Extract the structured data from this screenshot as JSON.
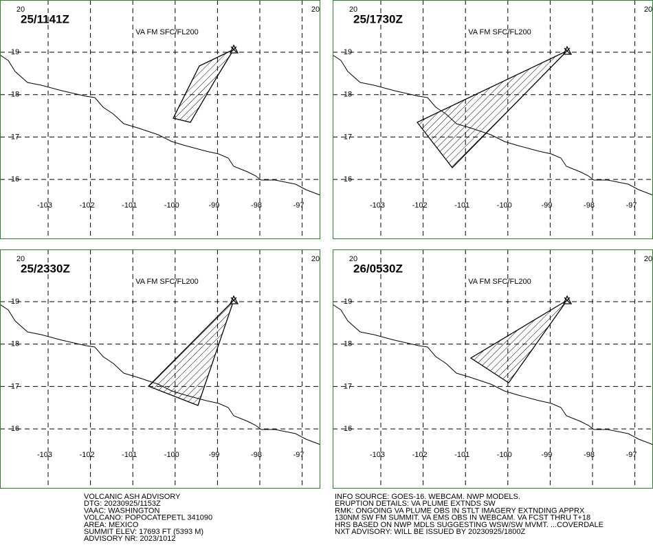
{
  "panels": [
    {
      "time": "25/1141Z",
      "level": "VA FM SFC/FL200"
    },
    {
      "time": "25/1730Z",
      "level": "VA FM SFC/FL200"
    },
    {
      "time": "25/2330Z",
      "level": "VA FM SFC/FL200"
    },
    {
      "time": "26/0530Z",
      "level": "VA FM SFC/FL200"
    }
  ],
  "lat_labels": [
    20,
    19,
    18,
    17,
    16
  ],
  "lon_labels": [
    -103,
    -102,
    -101,
    -100,
    -99,
    -98,
    -97
  ],
  "advisory_left": [
    "VOLCANIC ASH ADVISORY",
    "DTG: 20230925/1153Z",
    "VAAC: WASHINGTON",
    "VOLCANO: POPOCATEPETL 341090",
    "AREA: MEXICO",
    "SUMMIT ELEV: 17693 FT (5393 M)",
    "ADVISORY NR: 2023/1012"
  ],
  "advisory_right": [
    "INFO SOURCE: GOES-16. WEBCAM. NWP MODELS.",
    "ERUPTION DETAILS: VA PLUME EXTNDS SW",
    "RMK: ONGOING VA PLUME OBS IN STLT IMAGERY EXTNDING APPRX",
    "130NM SW FM SUMMIT. VA EMS OBS IN WEBCAM. VA FCST THRU T+18",
    "HRS BASED ON NWP MDLS SUGGESTING WSW/SW MVMT. ...COVERDALE",
    "NXT ADVISORY: WILL BE ISSUED BY 20230925/1800Z"
  ]
}
